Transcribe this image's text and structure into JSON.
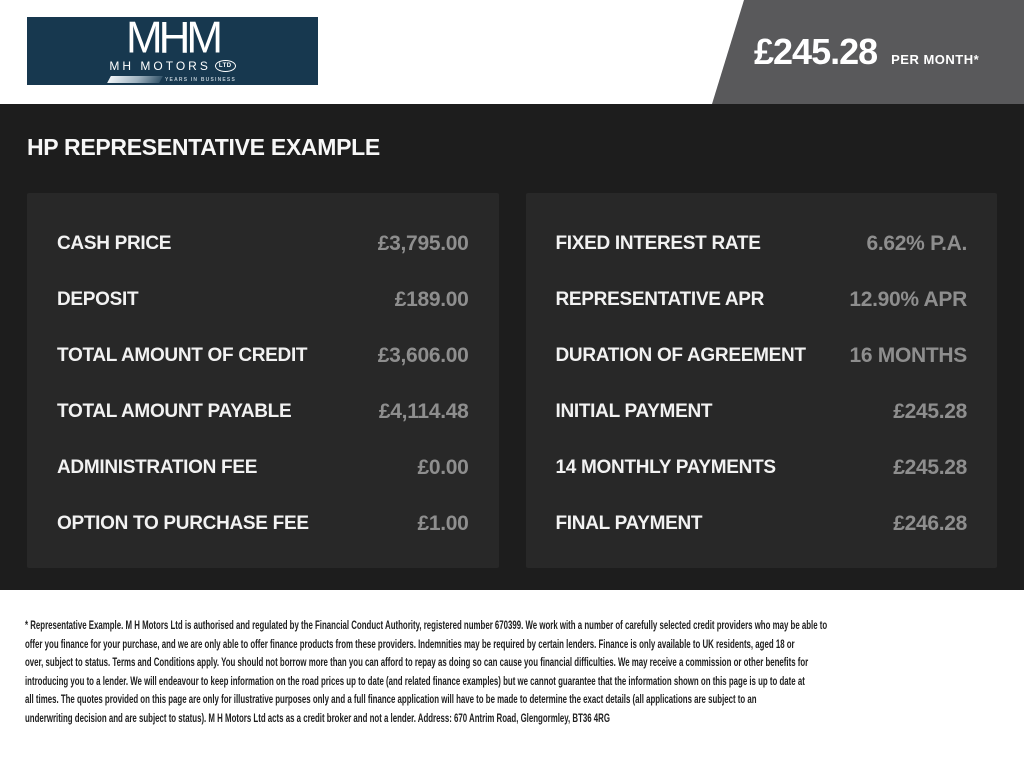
{
  "header": {
    "logo": {
      "wordmark": "MHM",
      "company": "MH MOTORS",
      "suffix": "LTD",
      "tagline": "YEARS IN BUSINESS"
    },
    "price": {
      "amount": "£245.28",
      "period": "PER MONTH*"
    }
  },
  "page_title": "HP REPRESENTATIVE EXAMPLE",
  "finance": {
    "left": {
      "rows": [
        {
          "label": "CASH PRICE",
          "value": "£3,795.00"
        },
        {
          "label": "DEPOSIT",
          "value": "£189.00"
        },
        {
          "label": "TOTAL AMOUNT OF CREDIT",
          "value": "£3,606.00"
        },
        {
          "label": "TOTAL AMOUNT PAYABLE",
          "value": "£4,114.48"
        },
        {
          "label": "ADMINISTRATION FEE",
          "value": "£0.00"
        },
        {
          "label": "OPTION TO PURCHASE FEE",
          "value": "£1.00"
        }
      ]
    },
    "right": {
      "rows": [
        {
          "label": "FIXED INTEREST RATE",
          "value": "6.62% P.A."
        },
        {
          "label": "REPRESENTATIVE APR",
          "value": "12.90% APR"
        },
        {
          "label": "DURATION OF AGREEMENT",
          "value": "16 MONTHS"
        },
        {
          "label": "INITIAL PAYMENT",
          "value": "£245.28"
        },
        {
          "label": "14 MONTHLY PAYMENTS",
          "value": "£245.28"
        },
        {
          "label": "FINAL PAYMENT",
          "value": "£246.28"
        }
      ]
    }
  },
  "disclaimer": {
    "lines": [
      "* Representative Example. M H Motors Ltd is authorised and regulated by the Financial Conduct Authority, registered number 670399. We work with a number of carefully selected credit providers who may be able to",
      "offer you finance for your purchase, and we are only able to offer finance products from these providers. Indemnities may be required by certain lenders. Finance is only available to UK residents, aged 18 or",
      "over, subject to status. Terms and Conditions apply. You should not borrow more than you can afford to repay as doing so can cause you financial difficulties. We may receive a commission or other benefits for",
      "introducing you to a lender. We will endeavour to keep information on the road prices up to date (and related finance examples) but we cannot guarantee that the information shown on this page is up to date at",
      "all times. The quotes provided on this page are only for illustrative purposes only and a full finance application will have to be made to determine the exact details (all applications are subject to an",
      "underwriting decision and are subject to status). M H Motors Ltd acts as a credit broker and not a lender. Address: 670 Antrim Road, Glengormley, BT36 4RG"
    ]
  },
  "colors": {
    "logo_navy": "#17384f",
    "banner_gray": "#59595b",
    "page_dark": "#1d1d1d",
    "panel_dark": "#282828",
    "value_gray": "#8e8e8e"
  }
}
